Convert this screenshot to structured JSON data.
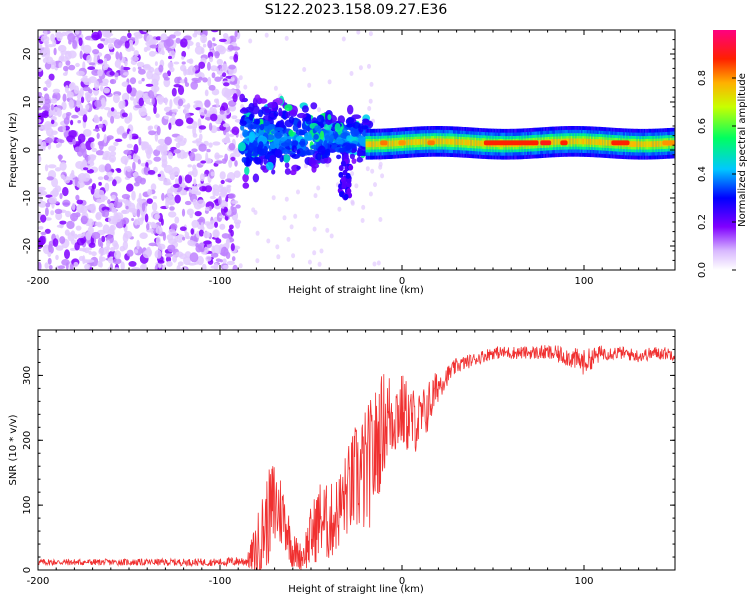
{
  "title": "S122.2023.158.09.27.E36",
  "chart_data": [
    {
      "type": "heatmap",
      "xlabel": "Height of straight line (km)",
      "ylabel": "Frequency (Hz)",
      "xlim": [
        -200,
        150
      ],
      "ylim": [
        -25,
        25
      ],
      "x_ticks": [
        "-200",
        "-100",
        "0",
        "100"
      ],
      "y_ticks": [
        "-20",
        "-10",
        "0",
        "10",
        "20"
      ],
      "colorbar": {
        "label": "Normalized spectral amplitude",
        "range": [
          0,
          1
        ],
        "ticks": [
          "0.0",
          "0.2",
          "0.4",
          "0.6",
          "0.8"
        ],
        "colors": [
          "#ffffff",
          "#a000ff",
          "#0000ff",
          "#00ffff",
          "#00ff00",
          "#ffff00",
          "#ff0000",
          "#ff0080"
        ]
      },
      "regions": [
        {
          "x_range": [
            -200,
            -90
          ],
          "description_level": 0.05
        },
        {
          "x_range": [
            -90,
            -20
          ],
          "f_center": 3,
          "level": 0.25
        },
        {
          "x_range": [
            -20,
            150
          ],
          "f_center": 1.5,
          "level": 0.8
        }
      ]
    },
    {
      "type": "line",
      "xlabel": "Height of straight line (km)",
      "ylabel": "SNR (10 * v/v)",
      "xlim": [
        -200,
        150
      ],
      "ylim": [
        0,
        370
      ],
      "x_ticks": [
        "-200",
        "-100",
        "0",
        "100"
      ],
      "y_ticks": [
        "0",
        "100",
        "200",
        "300"
      ],
      "color": "#f03030",
      "x": [
        -200,
        -150,
        -100,
        -85,
        -80,
        -75,
        -70,
        -65,
        -60,
        -55,
        -50,
        -45,
        -40,
        -35,
        -30,
        -25,
        -20,
        -15,
        -10,
        -5,
        0,
        5,
        10,
        15,
        20,
        25,
        30,
        40,
        50,
        60,
        70,
        80,
        90,
        100,
        110,
        120,
        130,
        140,
        150
      ],
      "y": [
        12,
        12,
        12,
        14,
        30,
        70,
        100,
        85,
        30,
        20,
        50,
        80,
        70,
        90,
        120,
        140,
        150,
        180,
        230,
        240,
        245,
        230,
        230,
        255,
        285,
        300,
        315,
        325,
        335,
        335,
        335,
        335,
        330,
        320,
        335,
        335,
        330,
        335,
        333
      ],
      "spread": [
        5,
        5,
        6,
        8,
        50,
        70,
        80,
        50,
        30,
        20,
        50,
        60,
        60,
        60,
        70,
        90,
        100,
        100,
        80,
        70,
        60,
        55,
        45,
        40,
        25,
        15,
        12,
        10,
        10,
        10,
        10,
        12,
        15,
        20,
        12,
        10,
        10,
        10,
        10
      ]
    }
  ]
}
